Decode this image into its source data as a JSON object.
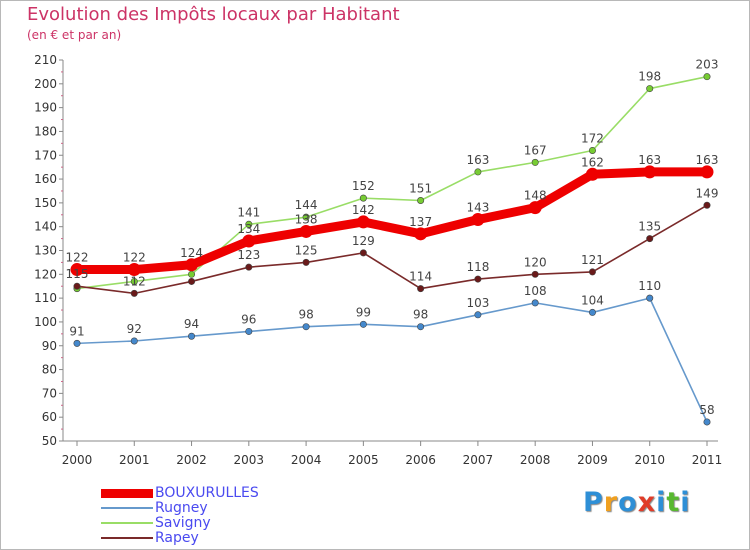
{
  "title": "Evolution des Impôts locaux par Habitant",
  "subtitle": "(en € et par an)",
  "logo": {
    "text": "Proxiti",
    "colors": [
      "#2e8fd6",
      "#f0a020",
      "#2e8fd6",
      "#e03c28",
      "#2e8fd6",
      "#58b830",
      "#2e8fd6"
    ]
  },
  "chart_data": {
    "type": "line",
    "title": "Evolution des Impôts locaux par Habitant",
    "subtitle": "(en € et par an)",
    "x": [
      "2000",
      "2001",
      "2002",
      "2003",
      "2004",
      "2005",
      "2006",
      "2007",
      "2008",
      "2009",
      "2010",
      "2011"
    ],
    "ylim": [
      50,
      210
    ],
    "yticks": [
      50,
      60,
      70,
      80,
      90,
      100,
      110,
      120,
      130,
      140,
      150,
      160,
      170,
      180,
      190,
      200,
      210
    ],
    "grid": false,
    "legend_position": "bottom-left",
    "series": [
      {
        "name": "Savigny",
        "color": "#99dd66",
        "point_color": "#77cc33",
        "values": [
          114,
          117,
          120,
          141,
          144,
          152,
          151,
          163,
          167,
          172,
          198,
          203
        ],
        "labels": [
          "114",
          "117",
          "120",
          "141",
          "144",
          "152",
          "151",
          "163",
          "167",
          "172",
          "198",
          "203"
        ],
        "shown_labels": [
          false,
          false,
          false,
          true,
          true,
          true,
          true,
          true,
          true,
          true,
          true,
          true
        ]
      },
      {
        "name": "Rapey",
        "color": "#7a2a2a",
        "point_color": "#6a1a1a",
        "values": [
          115,
          112,
          117,
          123,
          125,
          129,
          114,
          118,
          120,
          121,
          135,
          149
        ],
        "labels": [
          "115",
          "112",
          "117",
          "123",
          "125",
          "129",
          "114",
          "118",
          "120",
          "121",
          "135",
          "149"
        ],
        "shown_labels": [
          true,
          true,
          false,
          true,
          true,
          true,
          true,
          true,
          true,
          true,
          true,
          true
        ]
      },
      {
        "name": "Rugney",
        "color": "#6699cc",
        "point_color": "#4488cc",
        "values": [
          91,
          92,
          94,
          96,
          98,
          99,
          98,
          103,
          108,
          104,
          110,
          58
        ],
        "labels": [
          "91",
          "92",
          "94",
          "96",
          "98",
          "99",
          "98",
          "103",
          "108",
          "104",
          "110",
          "58"
        ],
        "shown_labels": [
          true,
          true,
          true,
          true,
          true,
          true,
          true,
          true,
          true,
          true,
          true,
          true
        ]
      },
      {
        "name": "BOUXURULLES",
        "color": "#ee0000",
        "point_color": "#ee0000",
        "values": [
          122,
          122,
          124,
          134,
          138,
          142,
          137,
          143,
          148,
          162,
          163,
          163
        ],
        "labels": [
          "122",
          "122",
          "124",
          "134",
          "138",
          "142",
          "137",
          "143",
          "148",
          "162",
          "163",
          "163"
        ],
        "shown_labels": [
          true,
          true,
          true,
          true,
          true,
          true,
          true,
          true,
          true,
          true,
          true,
          true
        ]
      }
    ]
  },
  "legend": [
    {
      "name": "BOUXURULLES",
      "color": "#ee0000",
      "thickness": 9
    },
    {
      "name": "Rugney",
      "color": "#6699cc",
      "thickness": 2
    },
    {
      "name": "Savigny",
      "color": "#99dd66",
      "thickness": 2
    },
    {
      "name": "Rapey",
      "color": "#7a2a2a",
      "thickness": 2
    }
  ]
}
